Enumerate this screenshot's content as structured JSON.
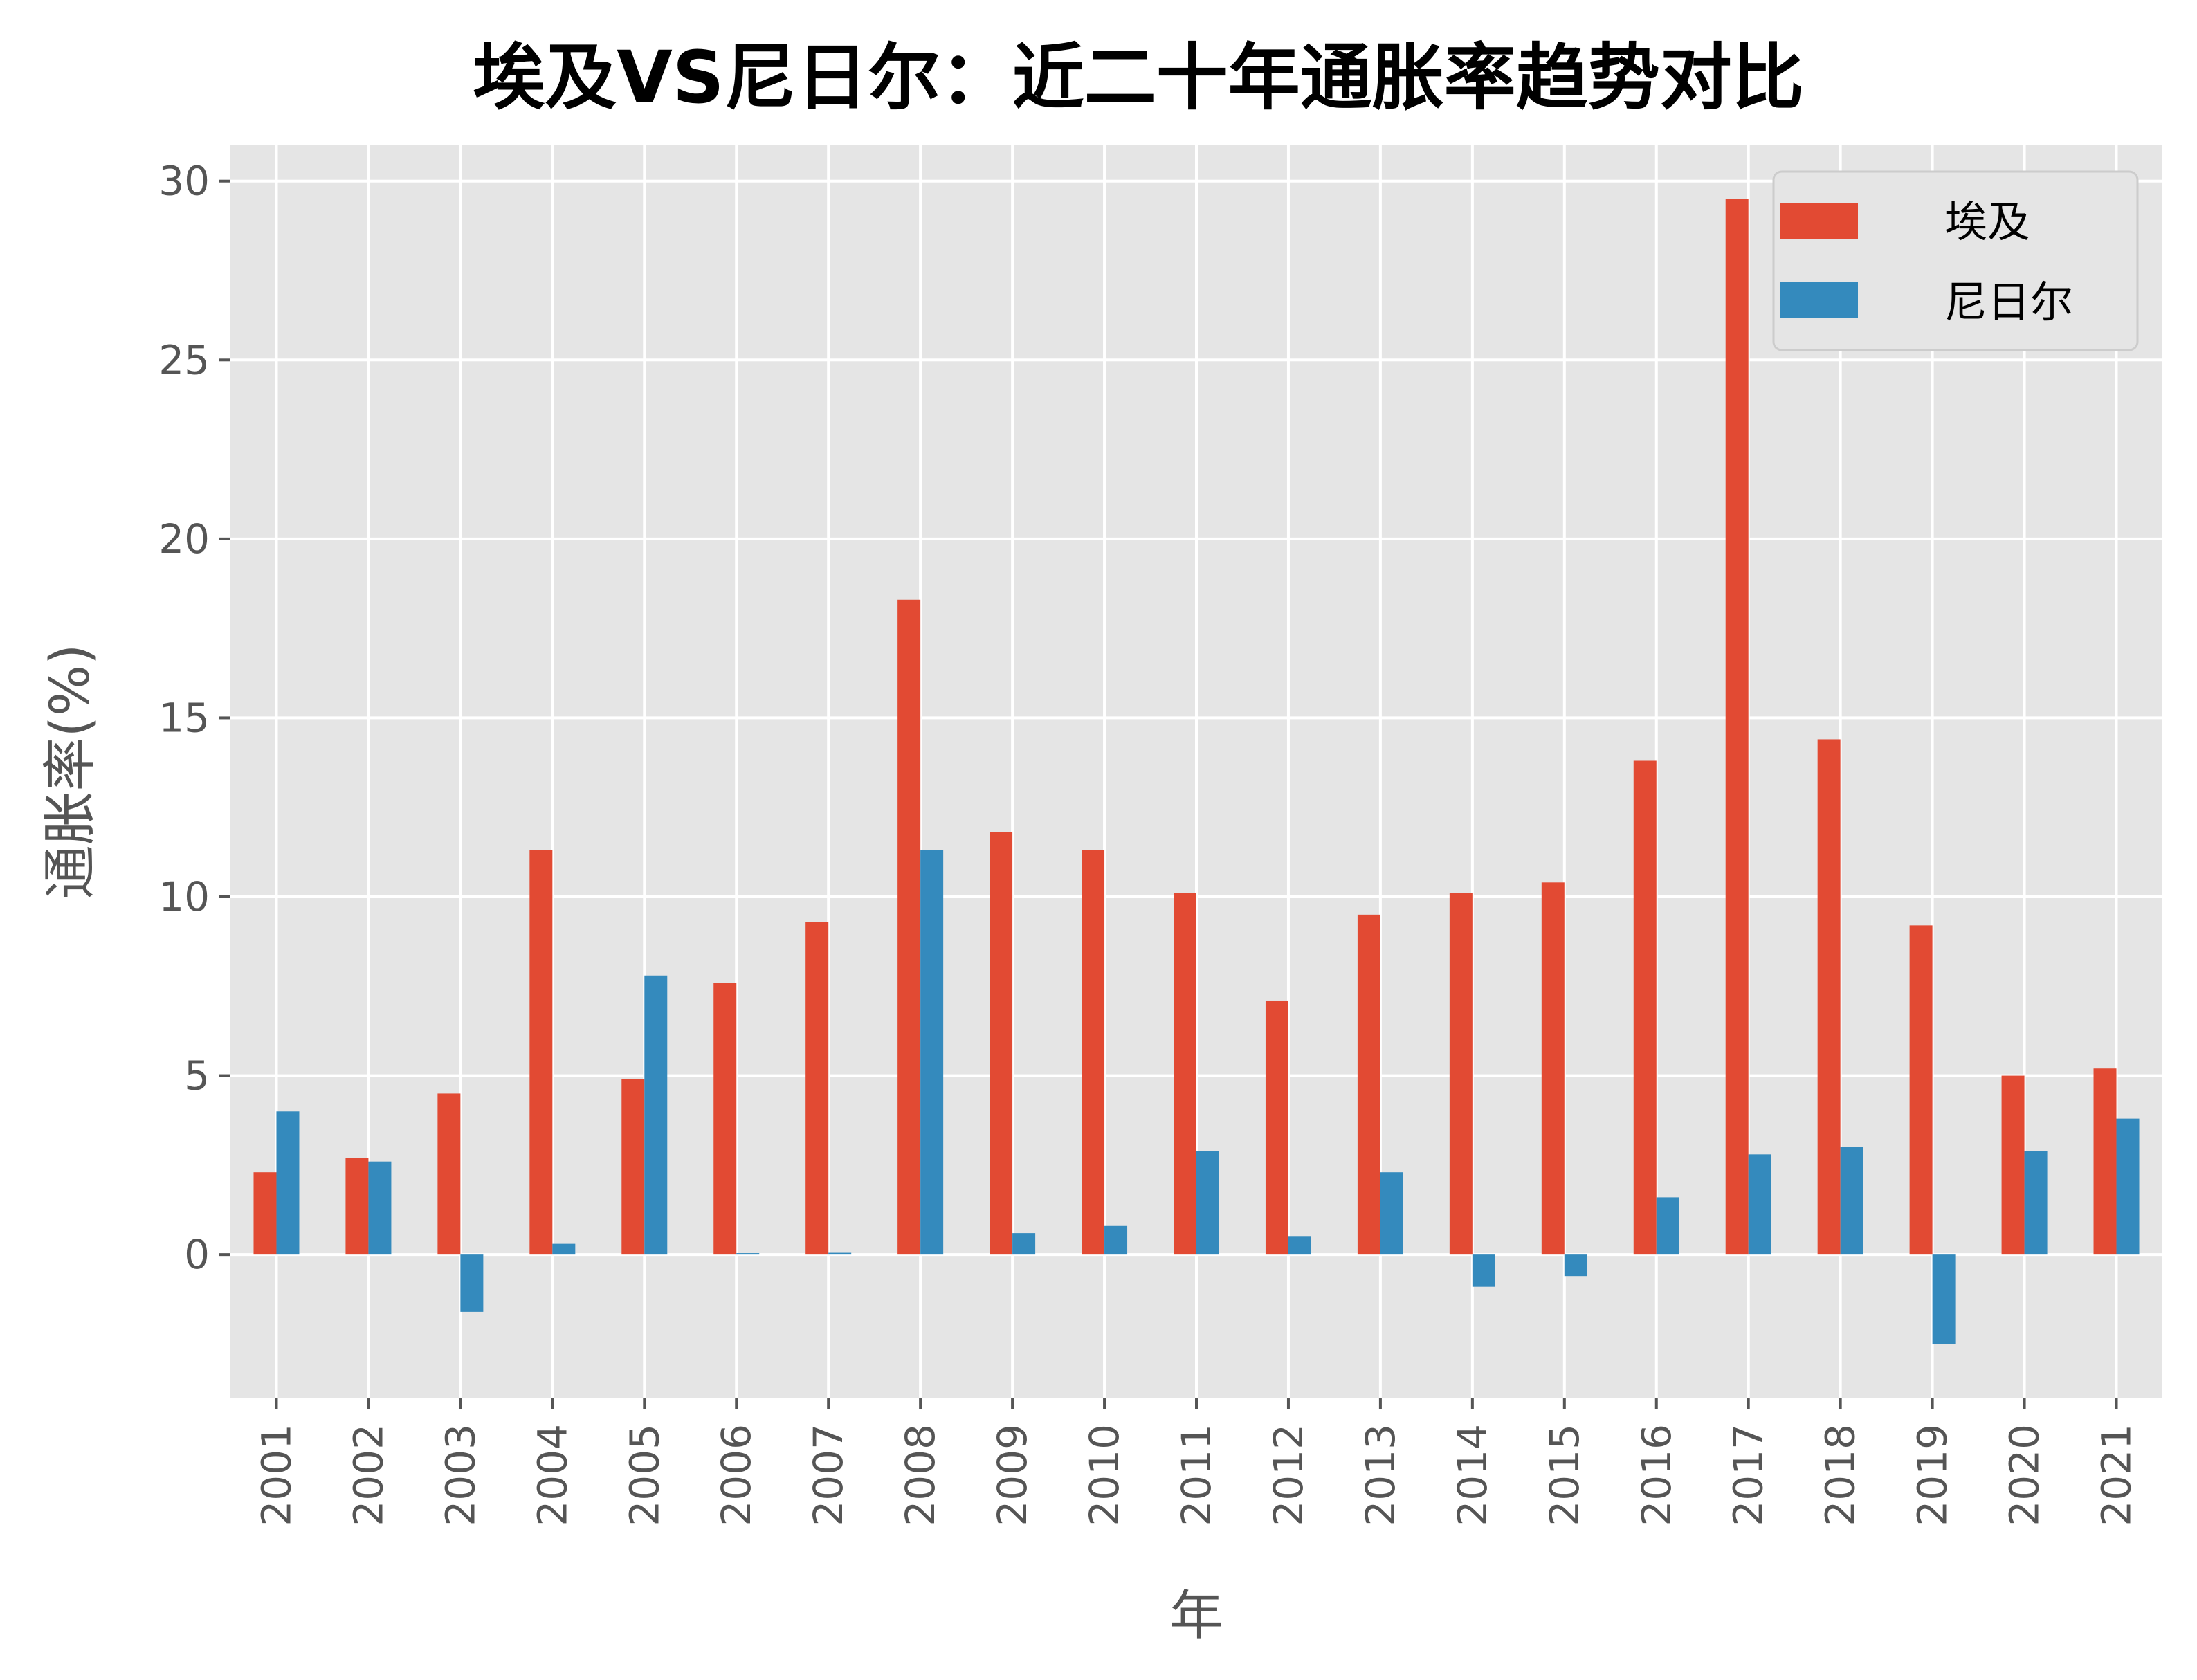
{
  "chart_data": {
    "type": "bar",
    "title": "埃及VS尼日尔：近二十年通胀率趋势对比",
    "xlabel": "年",
    "ylabel": "通胀率(%)",
    "categories": [
      "2001",
      "2002",
      "2003",
      "2004",
      "2005",
      "2006",
      "2007",
      "2008",
      "2009",
      "2010",
      "2011",
      "2012",
      "2013",
      "2014",
      "2015",
      "2016",
      "2017",
      "2018",
      "2019",
      "2020",
      "2021"
    ],
    "series": [
      {
        "name": "埃及",
        "color": "#E24A33",
        "values": [
          2.3,
          2.7,
          4.5,
          11.3,
          4.9,
          7.6,
          9.3,
          18.3,
          11.8,
          11.3,
          10.1,
          7.1,
          9.5,
          10.1,
          10.4,
          13.8,
          29.5,
          14.4,
          9.2,
          5.0,
          5.2
        ]
      },
      {
        "name": "尼日尔",
        "color": "#348ABD",
        "values": [
          4.0,
          2.6,
          -1.6,
          0.3,
          7.8,
          0.04,
          0.05,
          11.3,
          0.6,
          0.8,
          2.9,
          0.5,
          2.3,
          -0.9,
          -0.6,
          1.6,
          2.8,
          3.0,
          -2.5,
          2.9,
          3.8
        ]
      }
    ],
    "ylim": [
      -4,
      31
    ],
    "yticks": [
      0,
      5,
      10,
      15,
      20,
      25,
      30
    ],
    "grid": true,
    "legend_position": "top-right",
    "background": "#E5E5E5"
  }
}
